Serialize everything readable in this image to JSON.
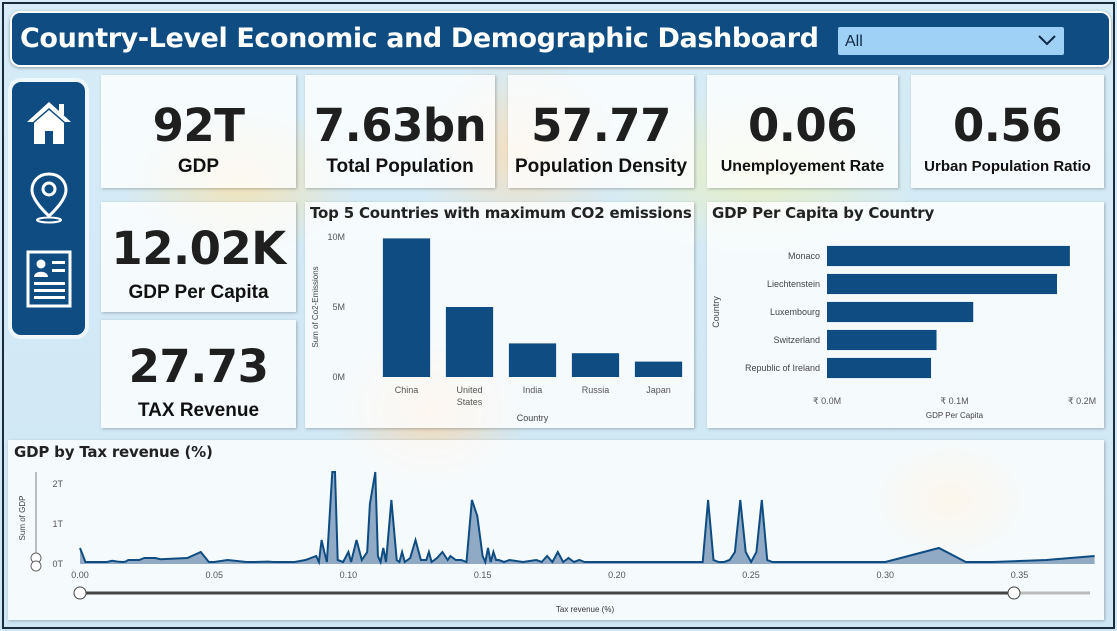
{
  "header": {
    "title": "Country-Level Economic and Demographic Dashboard",
    "slicer_value": "All"
  },
  "nav": {
    "items": [
      "home-icon",
      "location-pin-icon",
      "report-icon"
    ]
  },
  "kpis": {
    "gdp": {
      "value": "92T",
      "label": "GDP"
    },
    "total_population": {
      "value": "7.63bn",
      "label": "Total Population"
    },
    "population_density": {
      "value": "57.77",
      "label": "Population Density"
    },
    "unemployment_rate": {
      "value": "0.06",
      "label": "Unemployement Rate"
    },
    "urban_population_ratio": {
      "value": "0.56",
      "label": "Urban Population Ratio"
    },
    "gdp_per_capita": {
      "value": "12.02K",
      "label": "GDP Per Capita"
    },
    "tax_revenue": {
      "value": "27.73",
      "label": "TAX Revenue"
    }
  },
  "colors": {
    "header_bg": "#0f4c81",
    "bar": "#0f4c81",
    "slicer_bg": "#9fd0f5"
  },
  "chart_data": [
    {
      "type": "bar",
      "title": "Top 5 Countries with maximum CO2 emissions",
      "xlabel": "Country",
      "ylabel": "Sum of Co2-Emissions",
      "categories": [
        "China",
        "United States",
        "India",
        "Russia",
        "Japan"
      ],
      "category_lines": [
        [
          "China"
        ],
        [
          "United",
          "States"
        ],
        [
          "India"
        ],
        [
          "Russia"
        ],
        [
          "Japan"
        ]
      ],
      "values": [
        9900000,
        5000000,
        2400000,
        1700000,
        1100000
      ],
      "ylim": [
        0,
        10000000
      ],
      "yticks": [
        0,
        5000000,
        10000000
      ],
      "ytick_labels": [
        "0M",
        "5M",
        "10M"
      ],
      "grid": false
    },
    {
      "type": "bar",
      "orientation": "horizontal",
      "title": "GDP Per Capita by Country",
      "xlabel": "GDP Per Capita",
      "ylabel": "Country",
      "categories": [
        "Monaco",
        "Liechtenstein",
        "Luxembourg",
        "Switzerland",
        "Republic of Ireland"
      ],
      "values": [
        190500,
        180400,
        114700,
        85900,
        81600
      ],
      "xlim": [
        0,
        200000
      ],
      "xticks": [
        0,
        100000,
        200000
      ],
      "xtick_labels": [
        "₹ 0.0M",
        "₹ 0.1M",
        "₹ 0.2M"
      ],
      "grid": false
    },
    {
      "type": "area",
      "title": "GDP by Tax revenue (%)",
      "xlabel": "Tax revenue (%)",
      "ylabel": "Sum of GDP",
      "xlim": [
        0,
        0.38
      ],
      "ylim": [
        0,
        2300000000000
      ],
      "xticks": [
        0,
        0.05,
        0.1,
        0.15,
        0.2,
        0.25,
        0.3,
        0.35
      ],
      "xtick_labels": [
        "0.00",
        "0.05",
        "0.10",
        "0.15",
        "0.20",
        "0.25",
        "0.30",
        "0.35"
      ],
      "yticks": [
        0,
        1000000000000,
        2000000000000
      ],
      "ytick_labels": [
        "0T",
        "1T",
        "2T"
      ],
      "x": [
        0.0,
        0.002,
        0.01,
        0.012,
        0.014,
        0.016,
        0.017,
        0.018,
        0.022,
        0.024,
        0.028,
        0.03,
        0.04,
        0.045,
        0.048,
        0.05,
        0.055,
        0.062,
        0.065,
        0.07,
        0.072,
        0.074,
        0.076,
        0.08,
        0.084,
        0.088,
        0.089,
        0.09,
        0.091,
        0.092,
        0.094,
        0.095,
        0.096,
        0.098,
        0.1,
        0.101,
        0.103,
        0.105,
        0.107,
        0.108,
        0.11,
        0.111,
        0.112,
        0.113,
        0.114,
        0.116,
        0.118,
        0.119,
        0.12,
        0.121,
        0.123,
        0.125,
        0.127,
        0.129,
        0.13,
        0.131,
        0.133,
        0.135,
        0.137,
        0.138,
        0.14,
        0.142,
        0.144,
        0.146,
        0.148,
        0.15,
        0.151,
        0.152,
        0.153,
        0.154,
        0.155,
        0.156,
        0.158,
        0.16,
        0.165,
        0.17,
        0.172,
        0.174,
        0.176,
        0.178,
        0.18,
        0.182,
        0.184,
        0.186,
        0.188,
        0.19,
        0.195,
        0.2,
        0.21,
        0.22,
        0.23,
        0.232,
        0.234,
        0.236,
        0.238,
        0.24,
        0.242,
        0.244,
        0.246,
        0.248,
        0.25,
        0.252,
        0.254,
        0.256,
        0.258,
        0.26,
        0.27,
        0.28,
        0.3,
        0.32,
        0.33,
        0.34,
        0.36,
        0.378
      ],
      "y": [
        0.4,
        0.05,
        0.05,
        0.08,
        0.06,
        0.05,
        0.06,
        0.1,
        0.1,
        0.15,
        0.15,
        0.12,
        0.15,
        0.3,
        0.05,
        0.05,
        0.1,
        0.05,
        0.05,
        0.06,
        0.05,
        0.05,
        0.05,
        0.05,
        0.1,
        0.2,
        0.05,
        0.6,
        0.3,
        0.05,
        2.3,
        2.3,
        0.1,
        0.05,
        0.3,
        0.05,
        0.6,
        0.1,
        0.3,
        1.5,
        2.3,
        0.2,
        0.05,
        0.4,
        0.05,
        1.6,
        0.1,
        0.05,
        0.3,
        0.05,
        0.15,
        0.6,
        0.1,
        0.1,
        0.3,
        0.05,
        0.15,
        0.3,
        0.1,
        0.2,
        0.1,
        0.1,
        0.05,
        1.6,
        1.2,
        0.2,
        0.05,
        0.4,
        0.05,
        0.3,
        0.1,
        0.1,
        0.05,
        0.1,
        0.05,
        0.1,
        0.05,
        0.2,
        0.05,
        0.3,
        0.05,
        0.15,
        0.05,
        0.1,
        0.05,
        0.05,
        0.05,
        0.05,
        0.05,
        0.05,
        0.05,
        0.05,
        1.6,
        0.1,
        0.05,
        0.05,
        0.1,
        0.3,
        1.6,
        0.3,
        0.05,
        0.3,
        1.6,
        0.1,
        0.05,
        0.05,
        0.05,
        0.05,
        0.05,
        0.4,
        0.05,
        0.05,
        0.1,
        0.2
      ]
    }
  ]
}
